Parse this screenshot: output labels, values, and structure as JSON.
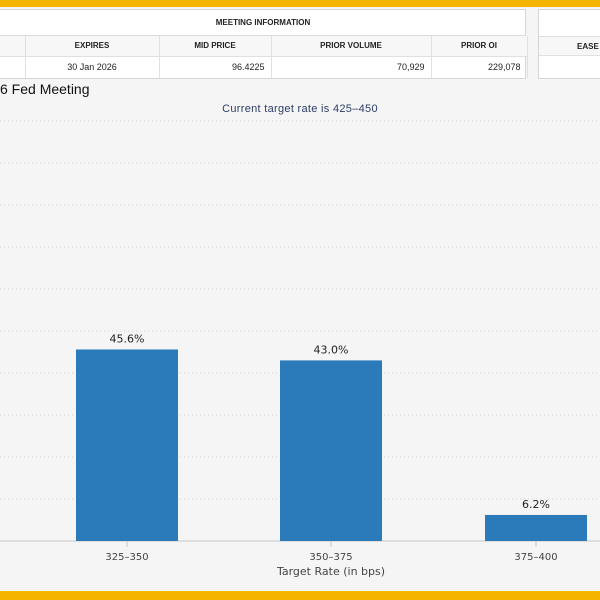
{
  "meeting_info": {
    "caption": "MEETING INFORMATION",
    "columns": [
      "EXPIRES",
      "MID PRICE",
      "PRIOR VOLUME",
      "PRIOR OI"
    ],
    "row": [
      "30 Jan 2026",
      "96.4225",
      "70,929",
      "229,078"
    ],
    "side_column": "EASE"
  },
  "chart_data": {
    "type": "bar",
    "title": "6 Fed Meeting",
    "subtitle": "Current target rate is 425–450",
    "xlabel": "Target Rate (in bps)",
    "ylabel": "",
    "categories": [
      "325–350",
      "350–375",
      "375–400"
    ],
    "values": [
      45.6,
      43.0,
      6.2
    ],
    "data_labels": [
      "45.6%",
      "43.0%",
      "6.2%"
    ],
    "ylim": [
      0,
      100
    ],
    "grid": true,
    "bar_color": "#2b7bba"
  },
  "colors": {
    "frame": "#f4b400",
    "background": "#f5f5f5",
    "bar": "#2b7bba"
  }
}
